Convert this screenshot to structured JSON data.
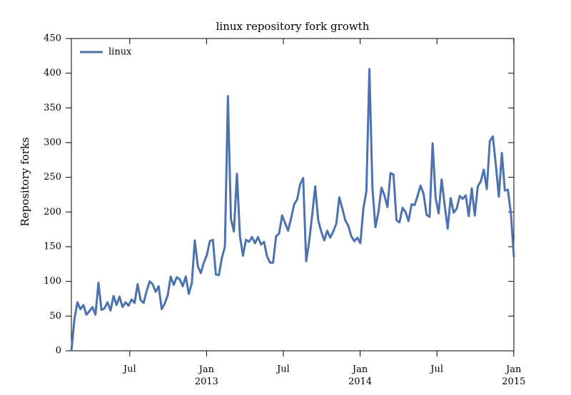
{
  "chart_data": {
    "type": "line",
    "title": "linux repository fork growth",
    "y_label": "Repository forks",
    "x": [
      2012.12,
      2012.1396,
      2012.1592,
      2012.1788,
      2012.1984,
      2012.218,
      2012.2376,
      2012.2572,
      2012.2768,
      2012.2964,
      2012.316,
      2012.3356,
      2012.3552,
      2012.3748,
      2012.3944,
      2012.414,
      2012.4336,
      2012.4532,
      2012.4728,
      2012.4924,
      2012.512,
      2012.5316,
      2012.5512,
      2012.5708,
      2012.5904,
      2012.61,
      2012.6296,
      2012.6492,
      2012.6688,
      2012.6884,
      2012.708,
      2012.7276,
      2012.7472,
      2012.7668,
      2012.7864,
      2012.806,
      2012.8256,
      2012.8452,
      2012.8648,
      2012.8844,
      2012.904,
      2012.9236,
      2012.9432,
      2012.9628,
      2012.9824,
      2013.002,
      2013.0216,
      2013.0412,
      2013.0608,
      2013.0804,
      2013.1,
      2013.1196,
      2013.1392,
      2013.1588,
      2013.1784,
      2013.198,
      2013.2176,
      2013.2372,
      2013.2568,
      2013.2764,
      2013.296,
      2013.3156,
      2013.3352,
      2013.3548,
      2013.3744,
      2013.394,
      2013.4136,
      2013.4332,
      2013.4528,
      2013.4724,
      2013.492,
      2013.5116,
      2013.5312,
      2013.5508,
      2013.5704,
      2013.59,
      2013.6096,
      2013.6292,
      2013.6488,
      2013.6684,
      2013.688,
      2013.7076,
      2013.7272,
      2013.7468,
      2013.7664,
      2013.786,
      2013.8056,
      2013.8252,
      2013.8448,
      2013.8644,
      2013.884,
      2013.9036,
      2013.9232,
      2013.9428,
      2013.9624,
      2013.982,
      2014.0016,
      2014.0212,
      2014.0408,
      2014.0604,
      2014.08,
      2014.0996,
      2014.1192,
      2014.1388,
      2014.1584,
      2014.178,
      2014.1976,
      2014.2172,
      2014.2368,
      2014.2564,
      2014.276,
      2014.2956,
      2014.3152,
      2014.3348,
      2014.3544,
      2014.374,
      2014.3936,
      2014.4132,
      2014.4328,
      2014.4524,
      2014.472,
      2014.4916,
      2014.5112,
      2014.5308,
      2014.5504,
      2014.57,
      2014.5896,
      2014.6092,
      2014.6288,
      2014.6484,
      2014.668,
      2014.6876,
      2014.7072,
      2014.7268,
      2014.7464,
      2014.766,
      2014.7856,
      2014.8052,
      2014.8248,
      2014.8444,
      2014.864,
      2014.8836,
      2014.9032,
      2014.9228,
      2014.9424,
      2014.962,
      2014.9816,
      2015.0012
    ],
    "series": [
      {
        "name": "linux",
        "color": "#4c72b0",
        "values": [
          0,
          45,
          70,
          60,
          66,
          52,
          57,
          63,
          52,
          98,
          59,
          61,
          70,
          58,
          79,
          66,
          78,
          63,
          70,
          65,
          74,
          69,
          96,
          73,
          69,
          86,
          100,
          96,
          85,
          93,
          60,
          68,
          80,
          107,
          95,
          106,
          103,
          93,
          107,
          82,
          97,
          159,
          122,
          112,
          127,
          138,
          158,
          160,
          110,
          109,
          134,
          150,
          367,
          190,
          172,
          255,
          165,
          137,
          160,
          157,
          164,
          155,
          164,
          153,
          157,
          136,
          127,
          127,
          165,
          169,
          195,
          184,
          173,
          191,
          211,
          218,
          240,
          249,
          129,
          158,
          196,
          237,
          188,
          172,
          159,
          173,
          163,
          172,
          183,
          221,
          205,
          188,
          180,
          165,
          158,
          163,
          155,
          205,
          230,
          406,
          235,
          178,
          200,
          235,
          224,
          207,
          256,
          254,
          188,
          185,
          206,
          200,
          187,
          211,
          210,
          223,
          238,
          226,
          196,
          193,
          299,
          220,
          198,
          247,
          210,
          176,
          220,
          199,
          205,
          223,
          219,
          224,
          194,
          234,
          195,
          237,
          244,
          261,
          233,
          302,
          309,
          268,
          222,
          285,
          231,
          232,
          198,
          135
        ]
      }
    ],
    "xlim": [
      2012.12,
      2015.0012
    ],
    "xticks": [
      {
        "value": 2012.5,
        "label": "Jul"
      },
      {
        "value": 2013,
        "label": "Jan 2013"
      },
      {
        "value": 2013.5,
        "label": "Jul"
      },
      {
        "value": 2014,
        "label": "Jan 2014"
      },
      {
        "value": 2014.5,
        "label": "Jul"
      },
      {
        "value": 2015,
        "label": "Jan 2015"
      }
    ],
    "ylim": [
      0,
      450
    ],
    "yticks": [
      0,
      50,
      100,
      150,
      200,
      250,
      300,
      350,
      400,
      450
    ],
    "legend": "upper left",
    "grid": false
  }
}
